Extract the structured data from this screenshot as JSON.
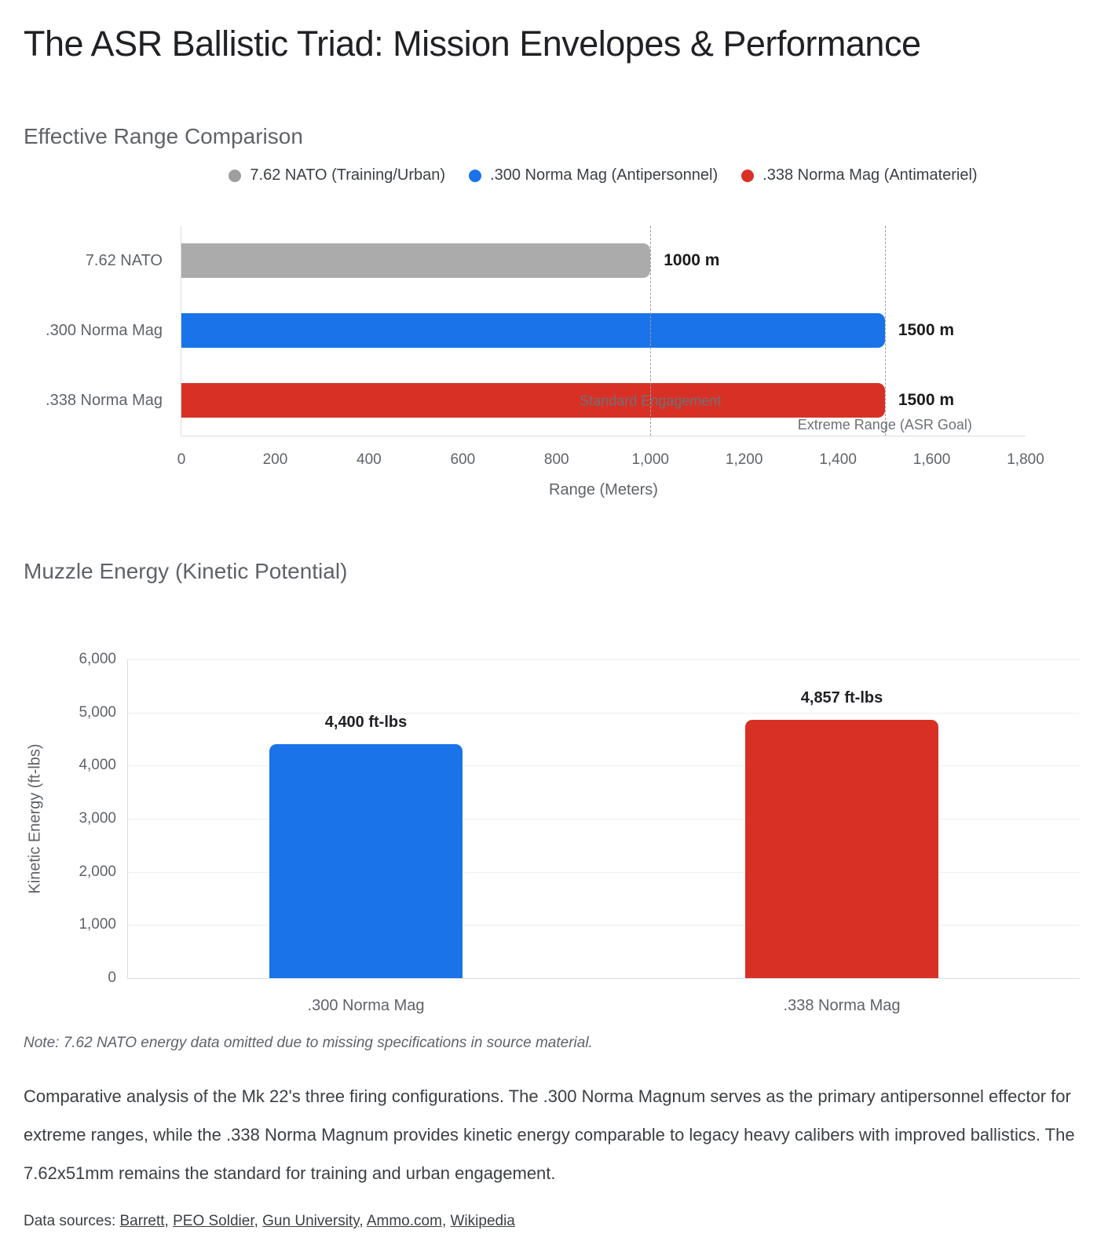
{
  "page": {
    "title": "The ASR Ballistic Triad: Mission Envelopes & Performance"
  },
  "chart_data": [
    {
      "type": "bar",
      "orientation": "horizontal",
      "title": "Effective Range Comparison",
      "categories": [
        "7.62 NATO",
        ".300 Norma Mag",
        ".338 Norma Mag"
      ],
      "values": [
        1000,
        1500,
        1500
      ],
      "value_labels": [
        "1000 m",
        "1500 m",
        "1500 m"
      ],
      "bar_colors": [
        "#ababab",
        "#1a73e8",
        "#d93025"
      ],
      "legend_position": "top",
      "legend": [
        {
          "label": "7.62 NATO (Training/Urban)",
          "color": "#9e9e9e"
        },
        {
          "label": ".300 Norma Mag (Antipersonnel)",
          "color": "#1a73e8"
        },
        {
          "label": ".338 Norma Mag (Antimateriel)",
          "color": "#d93025"
        }
      ],
      "xlabel": "Range (Meters)",
      "xlim": [
        0,
        1800
      ],
      "x_ticks": [
        0,
        200,
        400,
        600,
        800,
        1000,
        1200,
        1400,
        1600,
        1800
      ],
      "x_tick_labels": [
        "0",
        "200",
        "400",
        "600",
        "800",
        "1,000",
        "1,200",
        "1,400",
        "1,600",
        "1,800"
      ],
      "grid": false,
      "reference_lines": [
        {
          "value": 1000,
          "label": "Standard Engagement",
          "style": "dashed",
          "label_position": "middle"
        },
        {
          "value": 1500,
          "label": "Extreme Range (ASR Goal)",
          "style": "dashed",
          "label_position": "bottom"
        }
      ]
    },
    {
      "type": "bar",
      "orientation": "vertical",
      "title": "Muzzle Energy (Kinetic Potential)",
      "categories": [
        ".300 Norma Mag",
        ".338 Norma Mag"
      ],
      "values": [
        4400,
        4857
      ],
      "value_labels": [
        "4,400 ft-lbs",
        "4,857 ft-lbs"
      ],
      "bar_colors": [
        "#1a73e8",
        "#d93025"
      ],
      "ylabel": "Kinetic Energy (ft-lbs)",
      "ylim": [
        0,
        6000
      ],
      "y_ticks": [
        0,
        1000,
        2000,
        3000,
        4000,
        5000,
        6000
      ],
      "y_tick_labels": [
        "0",
        "1,000",
        "2,000",
        "3,000",
        "4,000",
        "5,000",
        "6,000"
      ],
      "grid": true,
      "note": "Note: 7.62 NATO energy data omitted due to missing specifications in source material."
    }
  ],
  "footer": {
    "paragraph": "Comparative analysis of the Mk 22's three firing configurations. The .300 Norma Magnum serves as the primary antipersonnel effector for extreme ranges, while the .338 Norma Magnum provides kinetic energy comparable to legacy heavy calibers with improved ballistics. The 7.62x51mm remains the standard for training and urban engagement.",
    "sources_label": "Data sources: ",
    "sources": [
      "Barrett",
      "PEO Soldier",
      "Gun University",
      "Ammo.com",
      "Wikipedia"
    ]
  }
}
